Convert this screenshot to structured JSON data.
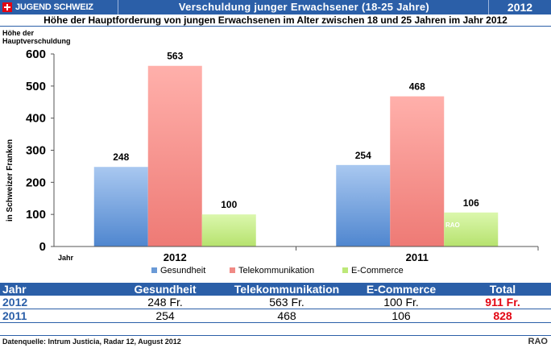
{
  "header": {
    "brand": "JUGEND SCHWEIZ",
    "title": "Verschuldung junger Erwachsener (18-25 Jahre)",
    "year": "2012"
  },
  "subtitle": "Höhe der Hauptforderung von jungen Erwachsenen im Alter zwischen 18 und 25 Jahren im Jahr 2012",
  "colors": {
    "header_blue": "#2b5fa8",
    "gesundheit": "#6a9ad6",
    "telekommunikation": "#f08a85",
    "ecommerce": "#bde878",
    "total_red": "#e30613"
  },
  "chart_data": {
    "type": "bar",
    "title": "Höhe der Hauptverschuldung",
    "ylabel": "in Schweizer Franken",
    "xlabel": "Jahr",
    "categories": [
      "2012",
      "2011"
    ],
    "series": [
      {
        "name": "Gesundheit",
        "values": [
          248,
          254
        ],
        "labels": [
          "248",
          "254"
        ]
      },
      {
        "name": "Telekommunikation",
        "values": [
          563,
          468
        ],
        "labels": [
          "563",
          "468"
        ]
      },
      {
        "name": "E-Commerce",
        "values": [
          100,
          106
        ],
        "labels": [
          "100",
          "106"
        ]
      }
    ],
    "ylim": [
      0,
      600
    ],
    "yticks": [
      "0",
      "100",
      "200",
      "300",
      "400",
      "500",
      "600"
    ],
    "grid": false,
    "legend": "bottom",
    "watermark": "RAO"
  },
  "table": {
    "headers": [
      "Jahr",
      "Gesundheit",
      "Telekommunikation",
      "E-Commerce",
      "Total"
    ],
    "rows": [
      [
        "2012",
        "248 Fr.",
        "563 Fr.",
        "100 Fr.",
        "911 Fr."
      ],
      [
        "2011",
        "254",
        "468",
        "106",
        "828"
      ]
    ]
  },
  "footer": {
    "source": "Datenquelle: Intrum Justicia, Radar 12, August 2012",
    "brand": "RAO"
  }
}
